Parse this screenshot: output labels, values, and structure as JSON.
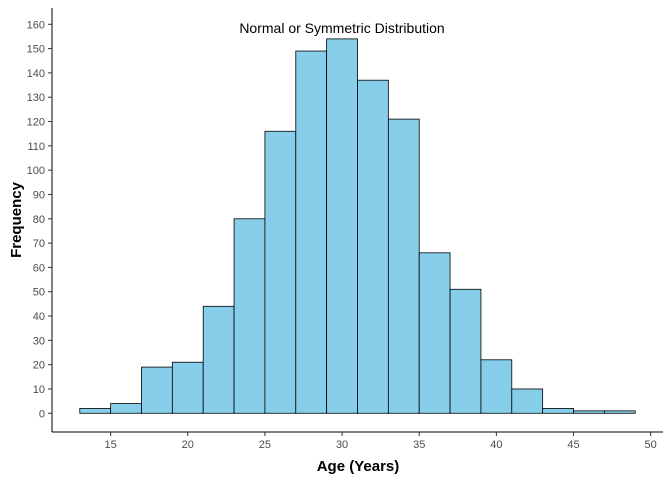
{
  "chart_data": {
    "type": "bar",
    "subtype": "histogram",
    "title": "Normal or Symmetric Distribution",
    "xlabel": "Age (Years)",
    "ylabel": "Frequency",
    "bin_width": 2,
    "bins": [
      {
        "start": 13,
        "end": 15,
        "count": 2
      },
      {
        "start": 15,
        "end": 17,
        "count": 4
      },
      {
        "start": 17,
        "end": 19,
        "count": 19
      },
      {
        "start": 19,
        "end": 21,
        "count": 21
      },
      {
        "start": 21,
        "end": 23,
        "count": 44
      },
      {
        "start": 23,
        "end": 25,
        "count": 80
      },
      {
        "start": 25,
        "end": 27,
        "count": 116
      },
      {
        "start": 27,
        "end": 29,
        "count": 149
      },
      {
        "start": 29,
        "end": 31,
        "count": 154
      },
      {
        "start": 31,
        "end": 33,
        "count": 137
      },
      {
        "start": 33,
        "end": 35,
        "count": 121
      },
      {
        "start": 35,
        "end": 37,
        "count": 66
      },
      {
        "start": 37,
        "end": 39,
        "count": 51
      },
      {
        "start": 39,
        "end": 41,
        "count": 22
      },
      {
        "start": 41,
        "end": 43,
        "count": 10
      },
      {
        "start": 43,
        "end": 45,
        "count": 2
      },
      {
        "start": 45,
        "end": 47,
        "count": 1
      },
      {
        "start": 47,
        "end": 49,
        "count": 1
      }
    ],
    "xlim": [
      11.2,
      50.8
    ],
    "ylim": [
      -7.7,
      166.7
    ],
    "x_ticks": [
      15,
      20,
      25,
      30,
      35,
      40,
      45,
      50
    ],
    "y_ticks": [
      0,
      10,
      20,
      30,
      40,
      50,
      60,
      70,
      80,
      90,
      100,
      110,
      120,
      130,
      140,
      150,
      160
    ],
    "grid": false,
    "colors": {
      "bar_fill": "#87CEEB",
      "bar_stroke": "#000000",
      "axis": "#000000"
    }
  }
}
